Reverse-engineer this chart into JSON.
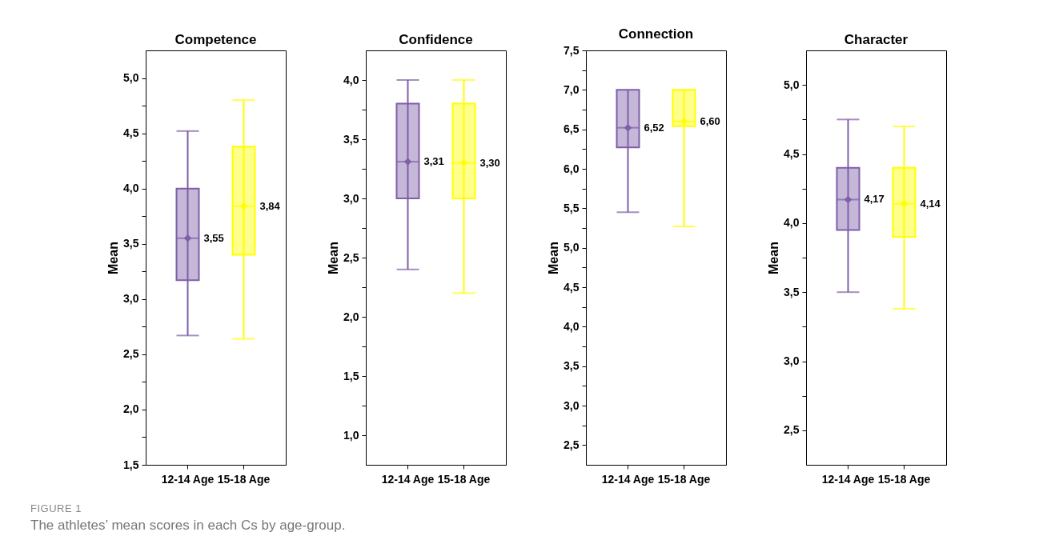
{
  "chart_data": [
    {
      "type": "box",
      "title": "Competence",
      "ylabel": "Mean",
      "categories": [
        "12-14 Age",
        "15-18 Age"
      ],
      "ylim": [
        1.5,
        5.25
      ],
      "yticks": [
        {
          "value": 1.5,
          "label": "1,5"
        },
        {
          "value": 1.75,
          "label": null
        },
        {
          "value": 2,
          "label": "2,0"
        },
        {
          "value": 2.25,
          "label": null
        },
        {
          "value": 2.5,
          "label": "2,5"
        },
        {
          "value": 2.75,
          "label": null
        },
        {
          "value": 3,
          "label": "3,0"
        },
        {
          "value": 3.25,
          "label": null
        },
        {
          "value": 3.5,
          "label": "3,5"
        },
        {
          "value": 3.75,
          "label": null
        },
        {
          "value": 4,
          "label": "4,0"
        },
        {
          "value": 4.25,
          "label": null
        },
        {
          "value": 4.5,
          "label": "4,5"
        },
        {
          "value": 4.75,
          "label": null
        },
        {
          "value": 5,
          "label": "5,0"
        }
      ],
      "annotations": [
        "FIGURE 1",
        "The athletes’ mean scores in each Cs by age-group."
      ],
      "series": [
        {
          "colors": [
            "#7f5fa8",
            "#ffff00"
          ],
          "value_labels": [
            "3,55",
            "3,84"
          ],
          "boxes": [
            {
              "low": 2.67,
              "q1": 3.17,
              "median": 3.55,
              "q3": 4.0,
              "high": 4.52,
              "mean": 3.55
            },
            {
              "low": 2.64,
              "q1": 3.4,
              "median": 3.84,
              "q3": 4.38,
              "high": 4.8,
              "mean": 3.84
            }
          ]
        }
      ]
    },
    {
      "type": "box",
      "title": "Confidence",
      "ylabel": "Mean",
      "categories": [
        "12-14 Age",
        "15-18 Age"
      ],
      "ylim": [
        0.75,
        4.25
      ],
      "yticks": [
        {
          "value": 1,
          "label": "1,0"
        },
        {
          "value": 1.25,
          "label": null
        },
        {
          "value": 1.5,
          "label": "1,5"
        },
        {
          "value": 1.75,
          "label": null
        },
        {
          "value": 2,
          "label": "2,0"
        },
        {
          "value": 2.25,
          "label": null
        },
        {
          "value": 2.5,
          "label": "2,5"
        },
        {
          "value": 2.75,
          "label": null
        },
        {
          "value": 3,
          "label": "3,0"
        },
        {
          "value": 3.25,
          "label": null
        },
        {
          "value": 3.5,
          "label": "3,5"
        },
        {
          "value": 3.75,
          "label": null
        },
        {
          "value": 4,
          "label": "4,0"
        }
      ],
      "series": [
        {
          "colors": [
            "#7f5fa8",
            "#ffff00"
          ],
          "value_labels": [
            "3,31",
            "3,30"
          ],
          "boxes": [
            {
              "low": 2.4,
              "q1": 3.0,
              "median": 3.31,
              "q3": 3.8,
              "high": 4.0,
              "mean": 3.31
            },
            {
              "low": 2.2,
              "q1": 3.0,
              "median": 3.3,
              "q3": 3.8,
              "high": 4.0,
              "mean": 3.3
            }
          ]
        }
      ]
    },
    {
      "type": "box",
      "title": "Connection",
      "ylabel": "Mean",
      "categories": [
        "12-14 Age",
        "15-18 Age"
      ],
      "ylim": [
        2.25,
        7.5
      ],
      "yticks": [
        {
          "value": 2.5,
          "label": "2,5"
        },
        {
          "value": 2.75,
          "label": null
        },
        {
          "value": 3,
          "label": "3,0"
        },
        {
          "value": 3.25,
          "label": null
        },
        {
          "value": 3.5,
          "label": "3,5"
        },
        {
          "value": 3.75,
          "label": null
        },
        {
          "value": 4,
          "label": "4,0"
        },
        {
          "value": 4.25,
          "label": null
        },
        {
          "value": 4.5,
          "label": "4,5"
        },
        {
          "value": 4.75,
          "label": null
        },
        {
          "value": 5,
          "label": "5,0"
        },
        {
          "value": 5.25,
          "label": null
        },
        {
          "value": 5.5,
          "label": "5,5"
        },
        {
          "value": 5.75,
          "label": null
        },
        {
          "value": 6,
          "label": "6,0"
        },
        {
          "value": 6.25,
          "label": null
        },
        {
          "value": 6.5,
          "label": "6,5"
        },
        {
          "value": 6.75,
          "label": null
        },
        {
          "value": 7,
          "label": "7,0"
        },
        {
          "value": 7.25,
          "label": null
        },
        {
          "value": 7.5,
          "label": "7,5"
        }
      ],
      "series": [
        {
          "colors": [
            "#7f5fa8",
            "#ffff00"
          ],
          "value_labels": [
            "6,52",
            "6,60"
          ],
          "boxes": [
            {
              "low": 5.45,
              "q1": 6.27,
              "median": 6.52,
              "q3": 7.0,
              "high": 7.0,
              "mean": 6.52
            },
            {
              "low": 5.27,
              "q1": 6.54,
              "median": 6.6,
              "q3": 7.0,
              "high": 7.0,
              "mean": 6.6
            }
          ]
        }
      ]
    },
    {
      "type": "box",
      "title": "Character",
      "ylabel": "Mean",
      "categories": [
        "12-14 Age",
        "15-18 Age"
      ],
      "ylim": [
        2.25,
        5.25
      ],
      "yticks": [
        {
          "value": 2.5,
          "label": "2,5"
        },
        {
          "value": 2.75,
          "label": null
        },
        {
          "value": 3,
          "label": "3,0"
        },
        {
          "value": 3.25,
          "label": null
        },
        {
          "value": 3.5,
          "label": "3,5"
        },
        {
          "value": 3.75,
          "label": null
        },
        {
          "value": 4,
          "label": "4,0"
        },
        {
          "value": 4.25,
          "label": null
        },
        {
          "value": 4.5,
          "label": "4,5"
        },
        {
          "value": 4.75,
          "label": null
        },
        {
          "value": 5,
          "label": "5,0"
        }
      ],
      "series": [
        {
          "colors": [
            "#7f5fa8",
            "#ffff00"
          ],
          "value_labels": [
            "4,17",
            "4,14"
          ],
          "boxes": [
            {
              "low": 3.5,
              "q1": 3.95,
              "median": 4.17,
              "q3": 4.4,
              "high": 4.75,
              "mean": 4.17
            },
            {
              "low": 3.38,
              "q1": 3.9,
              "median": 4.14,
              "q3": 4.4,
              "high": 4.7,
              "mean": 4.14
            }
          ]
        }
      ]
    }
  ]
}
